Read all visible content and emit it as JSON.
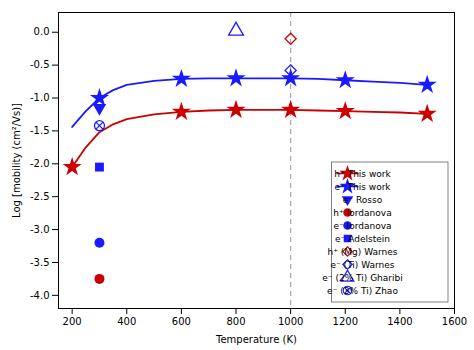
{
  "chart_data": {
    "type": "line",
    "xlabel": "Temperature (K)",
    "ylabel": "Log [mobility (cm²/Vs)]",
    "xlim": [
      150,
      1600
    ],
    "ylim": [
      -4.2,
      0.3
    ],
    "xticks": [
      200,
      400,
      600,
      800,
      1000,
      1200,
      1400,
      1600
    ],
    "yticks": [
      {
        "value": 0,
        "label": "0.0"
      },
      -0.5,
      {
        "value": -1,
        "label": "-1.0"
      },
      -1.5,
      {
        "value": -2,
        "label": "-2.0"
      },
      -2.5,
      {
        "value": -3,
        "label": "-3.0"
      },
      -3.5,
      {
        "value": -4,
        "label": "-4.0"
      }
    ],
    "grid": false,
    "legend": "lower right",
    "vline": {
      "x": 1000,
      "line_style": "dashed",
      "color": "gray"
    },
    "series": [
      {
        "name": "h⁺ This work",
        "type": "line",
        "line_style": "solid",
        "marker": "star",
        "color": "#cc0000",
        "x": [
          200,
          250,
          300,
          350,
          400,
          500,
          600,
          700,
          800,
          900,
          1000,
          1100,
          1200,
          1300,
          1400,
          1500
        ],
        "values": [
          -2.05,
          -1.75,
          -1.52,
          -1.4,
          -1.32,
          -1.25,
          -1.21,
          -1.19,
          -1.18,
          -1.18,
          -1.18,
          -1.19,
          -1.2,
          -1.21,
          -1.22,
          -1.24
        ],
        "marker_x": [
          200,
          600,
          800,
          1000,
          1200,
          1500
        ],
        "marker_values": [
          -2.05,
          -1.21,
          -1.18,
          -1.18,
          -1.2,
          -1.24
        ]
      },
      {
        "name": "e⁻ This work",
        "type": "line",
        "line_style": "solid",
        "marker": "star",
        "color": "#1a1aff",
        "x": [
          200,
          250,
          300,
          350,
          400,
          500,
          600,
          700,
          800,
          900,
          1000,
          1100,
          1200,
          1300,
          1400,
          1500
        ],
        "values": [
          -1.44,
          -1.2,
          -1.0,
          -0.88,
          -0.8,
          -0.74,
          -0.71,
          -0.7,
          -0.7,
          -0.7,
          -0.7,
          -0.71,
          -0.73,
          -0.75,
          -0.77,
          -0.8
        ],
        "marker_x": [
          300,
          600,
          800,
          1000,
          1200,
          1500
        ],
        "marker_values": [
          -1.0,
          -0.71,
          -0.7,
          -0.7,
          -0.73,
          -0.8
        ]
      },
      {
        "name": "e⁻ Rosso",
        "type": "scatter",
        "marker": "triangle-down",
        "color": "#1a1aff",
        "x": [
          300
        ],
        "values": [
          -1.15
        ]
      },
      {
        "name": "h⁺ Iordanova",
        "type": "scatter",
        "marker": "circle",
        "color": "#cc0000",
        "x": [
          300
        ],
        "values": [
          -3.75
        ]
      },
      {
        "name": "e⁻ Iordanova",
        "type": "scatter",
        "marker": "circle",
        "color": "#1a1aff",
        "x": [
          300
        ],
        "values": [
          -3.2
        ]
      },
      {
        "name": "e⁻ Adelstein",
        "type": "scatter",
        "marker": "square",
        "color": "#1a1aff",
        "x": [
          300
        ],
        "values": [
          -2.05
        ]
      },
      {
        "name": "h⁺ (Mg) Warnes",
        "type": "scatter",
        "marker": "open-diamond",
        "color": "#cc0000",
        "x": [
          1000
        ],
        "values": [
          -0.1
        ]
      },
      {
        "name": "e⁻ (Ti) Warnes",
        "type": "scatter",
        "marker": "open-diamond",
        "color": "#1a1aff",
        "x": [
          1000
        ],
        "values": [
          -0.58
        ]
      },
      {
        "name": "e⁻ (2% Ti) Gharibi",
        "type": "scatter",
        "marker": "open-triangle",
        "color": "#1a1aff",
        "x": [
          800
        ],
        "values": [
          0.02
        ]
      },
      {
        "name": "e⁻ (3% Ti) Zhao",
        "type": "scatter",
        "marker": "circled-x",
        "color": "#1a1aff",
        "x": [
          300
        ],
        "values": [
          -1.42
        ]
      }
    ]
  }
}
